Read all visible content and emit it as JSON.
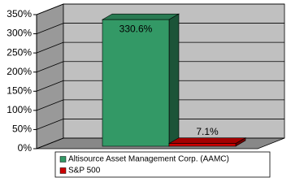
{
  "chart_data": {
    "type": "bar3d",
    "categories": [
      null
    ],
    "series": [
      {
        "name": "Altisource Asset Management Corp. (AAMC)",
        "color": "#339966",
        "values": [
          330.6
        ],
        "value_labels": [
          "330.6%"
        ]
      },
      {
        "name": "S&P 500",
        "color": "#cc0000",
        "values": [
          7.1
        ],
        "value_labels": [
          "7.1%"
        ]
      }
    ],
    "ylim": [
      0,
      350
    ],
    "yticks": [
      {
        "value": 0,
        "label": "0%"
      },
      {
        "value": 50,
        "label": "50%"
      },
      {
        "value": 100,
        "label": "100%"
      },
      {
        "value": 150,
        "label": "150%"
      },
      {
        "value": 200,
        "label": "200%"
      },
      {
        "value": 250,
        "label": "250%"
      },
      {
        "value": 300,
        "label": "300%"
      },
      {
        "value": 350,
        "label": "350%"
      }
    ],
    "grid": true
  }
}
